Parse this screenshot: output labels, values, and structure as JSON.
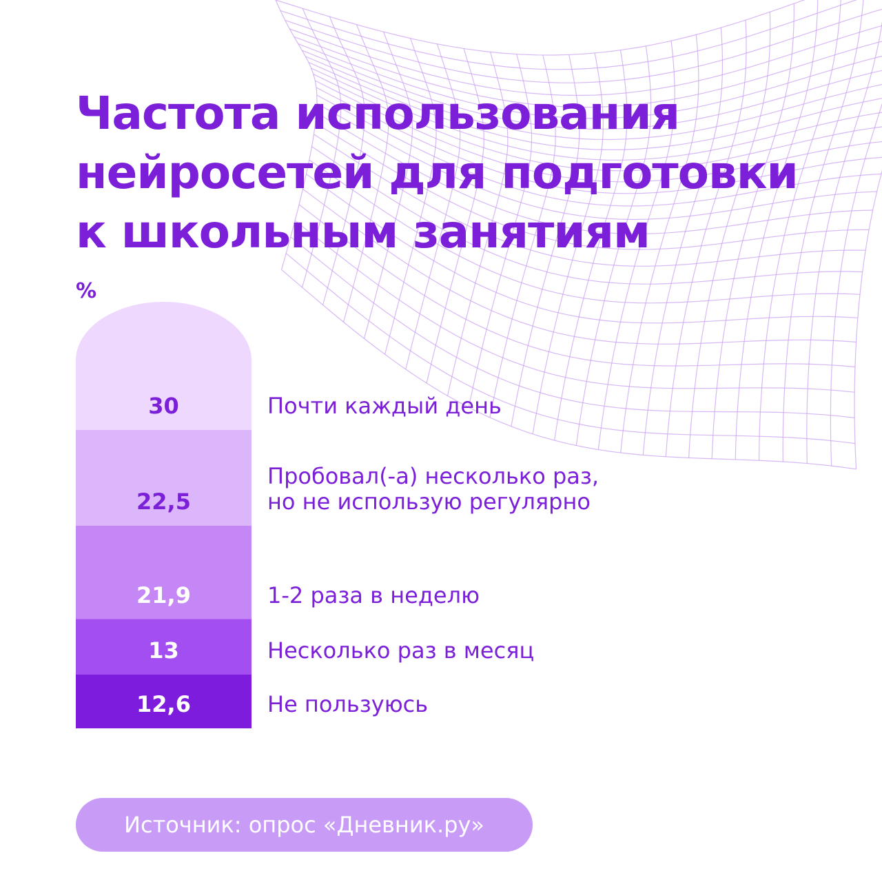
{
  "chart_data": {
    "type": "stacked-bar",
    "title": "Частота использования\nнейросетей для подготовки\nк школьным занятиям",
    "y_label": "%",
    "categories": [
      "Не пользуюсь",
      "Несколько раз в месяц",
      "1-2 раза в неделю",
      "Пробовал(-а) несколько раз,\nно не использую регулярно",
      "Почти каждый день"
    ],
    "values": [
      12.6,
      13,
      21.9,
      22.5,
      30
    ],
    "value_labels": [
      "12,6",
      "13",
      "21,9",
      "22,5",
      "30"
    ],
    "colors": [
      "#7d1cdc",
      "#a24ef0",
      "#c587f6",
      "#dcb6fb",
      "#eed8fd"
    ],
    "ylim": [
      0,
      100
    ],
    "source": "Источник: опрос «Дневник.ру»"
  }
}
